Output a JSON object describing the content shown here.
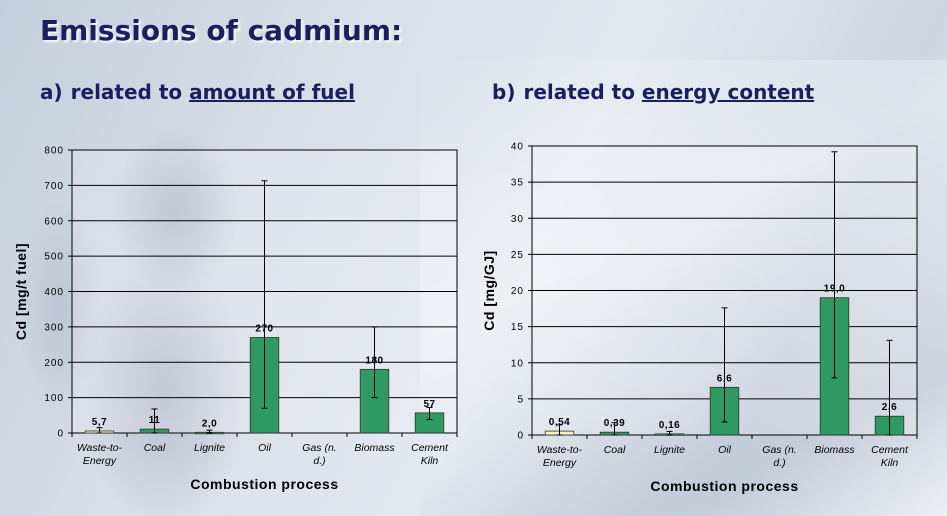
{
  "title": "Emissions of cadmium:",
  "subtitle_a": {
    "prefix": "a)",
    "text": "related to ",
    "underlined": "amount of fuel"
  },
  "subtitle_b": {
    "prefix": "b)",
    "text": "related to ",
    "underlined": "energy content"
  },
  "colors": {
    "bar": "#2e9a62",
    "bar_light": "#f4f0b8",
    "title": "#1b1f5e"
  },
  "chart_data": [
    {
      "type": "bar",
      "title": "",
      "xlabel": "Combustion process",
      "ylabel": "Cd [mg/t fuel]",
      "ylim": [
        0,
        800
      ],
      "yticks": [
        0,
        100,
        200,
        300,
        400,
        500,
        600,
        700,
        800
      ],
      "ytick_labels": [
        "0",
        "100",
        "200",
        "300",
        "400",
        "500",
        "600",
        "700",
        "800"
      ],
      "grid": true,
      "categories": [
        [
          "Waste-to-",
          "Energy"
        ],
        [
          "Coal"
        ],
        [
          "Lignite"
        ],
        [
          "Oil"
        ],
        [
          "Gas (n.",
          "d.)"
        ],
        [
          "Biomass"
        ],
        [
          "Cement",
          "Kiln"
        ]
      ],
      "values": [
        5.7,
        11,
        2.0,
        270,
        null,
        180,
        57
      ],
      "value_labels": [
        "5,7",
        "11",
        "2,0",
        "270",
        "",
        "180",
        "57"
      ],
      "error_low": [
        0,
        0,
        0,
        70,
        null,
        100,
        38
      ],
      "error_high": [
        15,
        68,
        8,
        713,
        null,
        300,
        72
      ],
      "bar_styles": [
        "light",
        "green",
        "green",
        "green",
        "none",
        "green",
        "green"
      ]
    },
    {
      "type": "bar",
      "title": "",
      "xlabel": "Combustion process",
      "ylabel": "Cd [mg/GJ]",
      "ylim": [
        0,
        40
      ],
      "yticks": [
        0,
        5,
        10,
        15,
        20,
        25,
        30,
        35,
        40
      ],
      "ytick_labels": [
        "0",
        "5",
        "10",
        "15",
        "20",
        "25",
        "30",
        "35",
        "40"
      ],
      "grid": true,
      "categories": [
        [
          "Waste-to-",
          "Energy"
        ],
        [
          "Coal"
        ],
        [
          "Lignite"
        ],
        [
          "Oil"
        ],
        [
          "Gas (n.",
          "d.)"
        ],
        [
          "Biomass"
        ],
        [
          "Cement",
          "Kiln"
        ]
      ],
      "values": [
        0.54,
        0.39,
        0.16,
        6.6,
        null,
        19.0,
        2.6
      ],
      "value_labels": [
        "0,54",
        "0,39",
        "0,16",
        "6,6",
        "",
        "19,0",
        "2,6"
      ],
      "error_low": [
        0,
        0,
        0,
        1.8,
        null,
        7.9,
        0
      ],
      "error_high": [
        1.4,
        1.7,
        0.5,
        17.6,
        null,
        39.2,
        13.1
      ],
      "bar_styles": [
        "light",
        "green",
        "green",
        "green",
        "none",
        "green",
        "green"
      ]
    }
  ]
}
